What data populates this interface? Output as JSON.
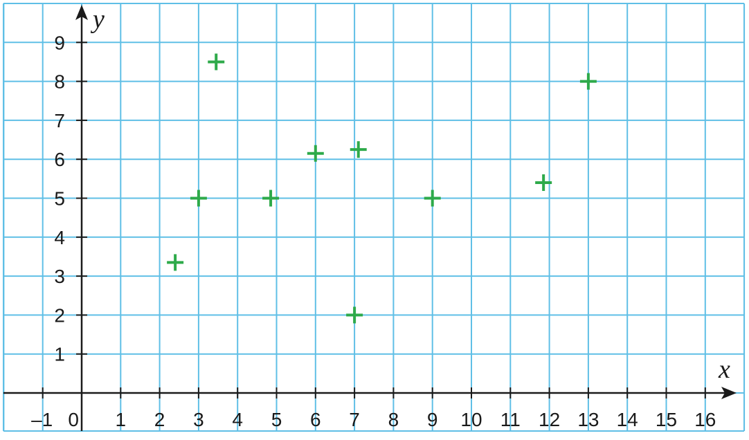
{
  "chart_data": {
    "type": "scatter",
    "title": "",
    "xlabel": "x",
    "ylabel": "y",
    "xlim": [
      -1,
      17
    ],
    "ylim": [
      -1,
      10
    ],
    "x_ticks": [
      {
        "value": -1,
        "label": "–1"
      },
      {
        "value": 0,
        "label": "0"
      },
      {
        "value": 1,
        "label": "1"
      },
      {
        "value": 2,
        "label": "2"
      },
      {
        "value": 3,
        "label": "3"
      },
      {
        "value": 4,
        "label": "4"
      },
      {
        "value": 5,
        "label": "5"
      },
      {
        "value": 6,
        "label": "6"
      },
      {
        "value": 7,
        "label": "7"
      },
      {
        "value": 8,
        "label": "8"
      },
      {
        "value": 9,
        "label": "9"
      },
      {
        "value": 10,
        "label": "10"
      },
      {
        "value": 11,
        "label": "11"
      },
      {
        "value": 12,
        "label": "12"
      },
      {
        "value": 13,
        "label": "13"
      },
      {
        "value": 14,
        "label": "14"
      },
      {
        "value": 15,
        "label": "15"
      },
      {
        "value": 16,
        "label": "16"
      }
    ],
    "y_ticks": [
      {
        "value": 1,
        "label": "1"
      },
      {
        "value": 2,
        "label": "2"
      },
      {
        "value": 3,
        "label": "3"
      },
      {
        "value": 4,
        "label": "4"
      },
      {
        "value": 5,
        "label": "5"
      },
      {
        "value": 6,
        "label": "6"
      },
      {
        "value": 7,
        "label": "7"
      },
      {
        "value": 8,
        "label": "8"
      },
      {
        "value": 9,
        "label": "9"
      }
    ],
    "grid": true,
    "marker": "plus",
    "series": [
      {
        "points": [
          {
            "x": 2.4,
            "y": 3.35
          },
          {
            "x": 3,
            "y": 5
          },
          {
            "x": 3.45,
            "y": 8.5
          },
          {
            "x": 4.85,
            "y": 5
          },
          {
            "x": 6,
            "y": 6.15
          },
          {
            "x": 7,
            "y": 2
          },
          {
            "x": 7.1,
            "y": 6.25
          },
          {
            "x": 9,
            "y": 5
          },
          {
            "x": 11.85,
            "y": 5.4
          },
          {
            "x": 13,
            "y": 8
          }
        ]
      }
    ]
  },
  "colors": {
    "grid": "#5fbfe6",
    "axis": "#1a1a1a",
    "marker": "#2eaa4a",
    "background": "#ffffff"
  }
}
